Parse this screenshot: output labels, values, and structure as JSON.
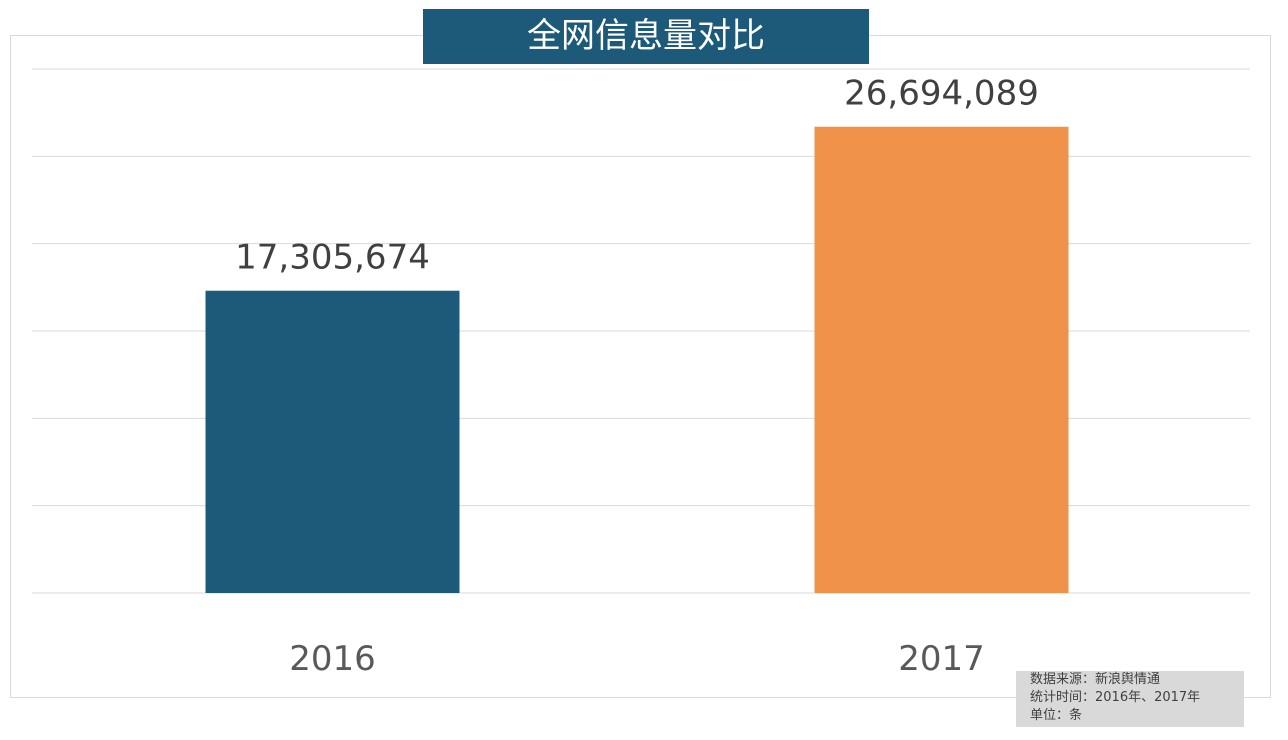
{
  "chart_data": {
    "type": "bar",
    "title": "全网信息量对比",
    "categories": [
      "2016",
      "2017"
    ],
    "values": [
      17305674,
      26694089
    ],
    "data_labels": [
      "17,305,674",
      "26,694,089"
    ],
    "colors": [
      "#1d5a7a",
      "#f0924a"
    ],
    "ylim": [
      0,
      30000000
    ],
    "grid": true,
    "y_axis_labels_shown": false
  },
  "note": {
    "source": "数据来源：新浪舆情通",
    "period": "统计时间：2016年、2017年",
    "unit": "单位：条"
  }
}
